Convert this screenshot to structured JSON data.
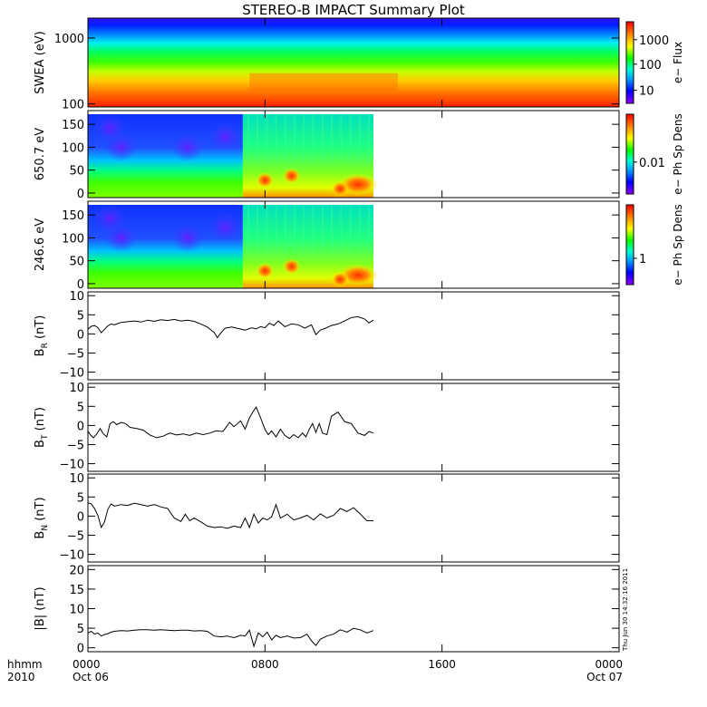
{
  "chart_data": {
    "type": "multi-panel",
    "title": "STEREO-B IMPACT Summary Plot",
    "x_axis": {
      "label_left_top": "hhmm",
      "label_left_bottom": "2010",
      "ticks": [
        {
          "hour": 0,
          "label": "0000",
          "date": "Oct 06"
        },
        {
          "hour": 8,
          "label": "0800",
          "date": ""
        },
        {
          "hour": 16,
          "label": "1600",
          "date": ""
        },
        {
          "hour": 24,
          "label": "0000",
          "date": "Oct 07"
        }
      ],
      "range_hours": [
        0,
        24
      ],
      "data_end_hour": 12.9
    },
    "timestamp": "Thu Jun 30 14:32:16 2011",
    "panels": [
      {
        "id": "swea",
        "type": "heatmap",
        "ylabel": "SWEA (eV)",
        "yscale": "log",
        "ylim": [
          90,
          2000
        ],
        "yticks": [
          {
            "v": 100,
            "label": "100"
          },
          {
            "v": 1000,
            "label": "1000"
          }
        ],
        "colorbar_label": "e− Flux",
        "colorbar_ticks": [
          {
            "f": 0.16,
            "label": "10"
          },
          {
            "f": 0.48,
            "label": "100"
          },
          {
            "f": 0.78,
            "label": "1000"
          }
        ],
        "data_end_hour": 24
      },
      {
        "id": "pad650",
        "type": "heatmap",
        "ylabel": "650.7 eV",
        "ylim": [
          -10,
          180
        ],
        "yticks": [
          {
            "v": 0,
            "label": "0"
          },
          {
            "v": 50,
            "label": "50"
          },
          {
            "v": 100,
            "label": "100"
          },
          {
            "v": 150,
            "label": "150"
          }
        ],
        "colorbar_label": "e− Ph Sp Dens",
        "colorbar_ticks": [
          {
            "f": 0.4,
            "label": "0.01"
          }
        ]
      },
      {
        "id": "pad246",
        "type": "heatmap",
        "ylabel": "246.6 eV",
        "ylim": [
          -10,
          180
        ],
        "yticks": [
          {
            "v": 0,
            "label": "0"
          },
          {
            "v": 50,
            "label": "50"
          },
          {
            "v": 100,
            "label": "100"
          },
          {
            "v": 150,
            "label": "150"
          }
        ],
        "colorbar_label": "e− Ph Sp Dens",
        "colorbar_ticks": [
          {
            "f": 0.33,
            "label": "1"
          }
        ]
      },
      {
        "id": "br",
        "type": "line",
        "ylabel": "B",
        "ylabel_sub": "R",
        "ylabel_unit": "(nT)",
        "ylim": [
          -12,
          11
        ],
        "yticks": [
          {
            "v": -10,
            "label": "−10"
          },
          {
            "v": -5,
            "label": "−5"
          },
          {
            "v": 0,
            "label": "0"
          },
          {
            "v": 5,
            "label": "5"
          },
          {
            "v": 10,
            "label": "10"
          }
        ],
        "x": [
          0,
          0.15,
          0.3,
          0.45,
          0.6,
          0.75,
          0.9,
          1.05,
          1.2,
          1.5,
          1.8,
          2.1,
          2.4,
          2.7,
          3.0,
          3.3,
          3.6,
          3.9,
          4.2,
          4.5,
          4.8,
          5.1,
          5.4,
          5.7,
          5.85,
          6.0,
          6.2,
          6.5,
          6.8,
          7.1,
          7.4,
          7.6,
          7.8,
          8.0,
          8.2,
          8.4,
          8.6,
          8.9,
          9.2,
          9.5,
          9.8,
          10.1,
          10.3,
          10.5,
          10.7,
          11.0,
          11.3,
          11.6,
          11.9,
          12.2,
          12.5,
          12.7,
          12.9
        ],
        "y": [
          1.2,
          2.0,
          2.2,
          1.6,
          0.3,
          1.2,
          2.1,
          2.6,
          2.4,
          3.0,
          3.2,
          3.4,
          3.1,
          3.6,
          3.3,
          3.7,
          3.5,
          3.8,
          3.4,
          3.6,
          3.3,
          2.6,
          1.8,
          0.4,
          -1.0,
          0.2,
          1.5,
          1.8,
          1.4,
          1.0,
          1.6,
          1.3,
          1.9,
          1.6,
          2.8,
          2.2,
          3.4,
          1.9,
          2.6,
          2.4,
          1.5,
          2.4,
          -0.2,
          1.0,
          1.4,
          2.2,
          2.6,
          3.4,
          4.3,
          4.5,
          3.9,
          2.9,
          3.6
        ]
      },
      {
        "id": "bt",
        "type": "line",
        "ylabel": "B",
        "ylabel_sub": "T",
        "ylabel_unit": "(nT)",
        "ylim": [
          -12,
          11
        ],
        "yticks": [
          {
            "v": -10,
            "label": "−10"
          },
          {
            "v": -5,
            "label": "−5"
          },
          {
            "v": 0,
            "label": "0"
          },
          {
            "v": 5,
            "label": "5"
          },
          {
            "v": 10,
            "label": "10"
          }
        ],
        "x": [
          0,
          0.12,
          0.25,
          0.4,
          0.55,
          0.7,
          0.85,
          1.0,
          1.15,
          1.3,
          1.5,
          1.7,
          1.9,
          2.2,
          2.5,
          2.8,
          3.1,
          3.4,
          3.7,
          4.0,
          4.3,
          4.6,
          4.9,
          5.2,
          5.5,
          5.8,
          6.1,
          6.4,
          6.6,
          6.9,
          7.1,
          7.3,
          7.45,
          7.6,
          7.8,
          8.0,
          8.15,
          8.3,
          8.5,
          8.7,
          8.9,
          9.1,
          9.3,
          9.5,
          9.7,
          9.85,
          10.0,
          10.15,
          10.3,
          10.45,
          10.6,
          10.8,
          11.0,
          11.3,
          11.6,
          11.9,
          12.2,
          12.5,
          12.7,
          12.9
        ],
        "y": [
          -1.5,
          -2.5,
          -3.2,
          -2.2,
          -0.8,
          -2.2,
          -3.0,
          0.5,
          1.0,
          0.2,
          0.8,
          0.5,
          -0.5,
          -0.8,
          -1.2,
          -2.5,
          -3.2,
          -2.8,
          -2.0,
          -2.5,
          -2.2,
          -2.6,
          -2.0,
          -2.4,
          -2.0,
          -1.4,
          -1.6,
          0.8,
          -0.3,
          1.2,
          -1.0,
          2.0,
          3.5,
          4.8,
          2.0,
          -1.0,
          -2.4,
          -1.4,
          -3.0,
          -1.0,
          -2.6,
          -3.4,
          -2.4,
          -3.2,
          -2.0,
          -3.0,
          -1.0,
          0.5,
          -1.8,
          0.5,
          -2.0,
          -2.4,
          2.4,
          3.5,
          1.0,
          0.5,
          -2.0,
          -2.6,
          -1.6,
          -2.0
        ]
      },
      {
        "id": "bn",
        "type": "line",
        "ylabel": "B",
        "ylabel_sub": "N",
        "ylabel_unit": "(nT)",
        "ylim": [
          -12,
          11
        ],
        "yticks": [
          {
            "v": -10,
            "label": "−10"
          },
          {
            "v": -5,
            "label": "−5"
          },
          {
            "v": 0,
            "label": "0"
          },
          {
            "v": 5,
            "label": "5"
          },
          {
            "v": 10,
            "label": "10"
          }
        ],
        "x": [
          0,
          0.15,
          0.3,
          0.45,
          0.6,
          0.75,
          0.9,
          1.05,
          1.2,
          1.5,
          1.8,
          2.1,
          2.4,
          2.7,
          3.0,
          3.3,
          3.6,
          3.9,
          4.2,
          4.4,
          4.6,
          4.8,
          5.1,
          5.4,
          5.7,
          6.0,
          6.3,
          6.6,
          6.9,
          7.1,
          7.3,
          7.5,
          7.7,
          7.9,
          8.1,
          8.3,
          8.5,
          8.7,
          9.0,
          9.3,
          9.6,
          9.9,
          10.2,
          10.5,
          10.8,
          11.1,
          11.4,
          11.7,
          12.0,
          12.3,
          12.6,
          12.9
        ],
        "y": [
          3.5,
          3.2,
          2.0,
          0.2,
          -3.0,
          -1.5,
          1.8,
          3.2,
          2.6,
          3.0,
          2.8,
          3.4,
          3.0,
          2.6,
          3.0,
          2.4,
          2.0,
          -0.5,
          -1.4,
          0.5,
          -1.2,
          -0.5,
          -1.5,
          -2.6,
          -3.0,
          -2.8,
          -3.2,
          -2.6,
          -3.0,
          -0.5,
          -3.0,
          0.5,
          -1.8,
          -0.5,
          -1.0,
          -0.2,
          3.0,
          -0.5,
          0.5,
          -1.0,
          -0.5,
          0.2,
          -1.0,
          0.6,
          -0.5,
          0.2,
          2.0,
          1.2,
          2.2,
          0.6,
          -1.2,
          -1.2
        ]
      },
      {
        "id": "bmag",
        "type": "line",
        "ylabel": "|B| (nT)",
        "ylim": [
          -1,
          21
        ],
        "yticks": [
          {
            "v": 0,
            "label": "0"
          },
          {
            "v": 5,
            "label": "5"
          },
          {
            "v": 10,
            "label": "10"
          },
          {
            "v": 15,
            "label": "15"
          },
          {
            "v": 20,
            "label": "20"
          }
        ],
        "x": [
          0,
          0.15,
          0.3,
          0.45,
          0.6,
          0.75,
          0.9,
          1.05,
          1.2,
          1.5,
          1.8,
          2.1,
          2.4,
          2.7,
          3.0,
          3.3,
          3.6,
          3.9,
          4.2,
          4.5,
          4.8,
          5.1,
          5.4,
          5.7,
          6.0,
          6.3,
          6.6,
          6.9,
          7.1,
          7.3,
          7.5,
          7.7,
          7.9,
          8.1,
          8.3,
          8.5,
          8.7,
          9.0,
          9.3,
          9.6,
          9.9,
          10.1,
          10.3,
          10.5,
          10.8,
          11.1,
          11.4,
          11.7,
          12.0,
          12.3,
          12.6,
          12.9
        ],
        "y": [
          3.8,
          4.2,
          3.5,
          3.8,
          3.0,
          3.4,
          3.6,
          4.0,
          4.2,
          4.4,
          4.3,
          4.5,
          4.6,
          4.6,
          4.5,
          4.6,
          4.5,
          4.4,
          4.5,
          4.5,
          4.3,
          4.4,
          4.2,
          3.0,
          2.8,
          3.0,
          2.6,
          3.2,
          3.0,
          4.5,
          0.4,
          3.8,
          2.8,
          4.0,
          2.0,
          3.2,
          2.6,
          3.0,
          2.5,
          2.6,
          3.5,
          1.8,
          0.6,
          2.2,
          3.0,
          3.5,
          4.6,
          4.0,
          5.0,
          4.6,
          3.8,
          4.4
        ]
      }
    ]
  }
}
